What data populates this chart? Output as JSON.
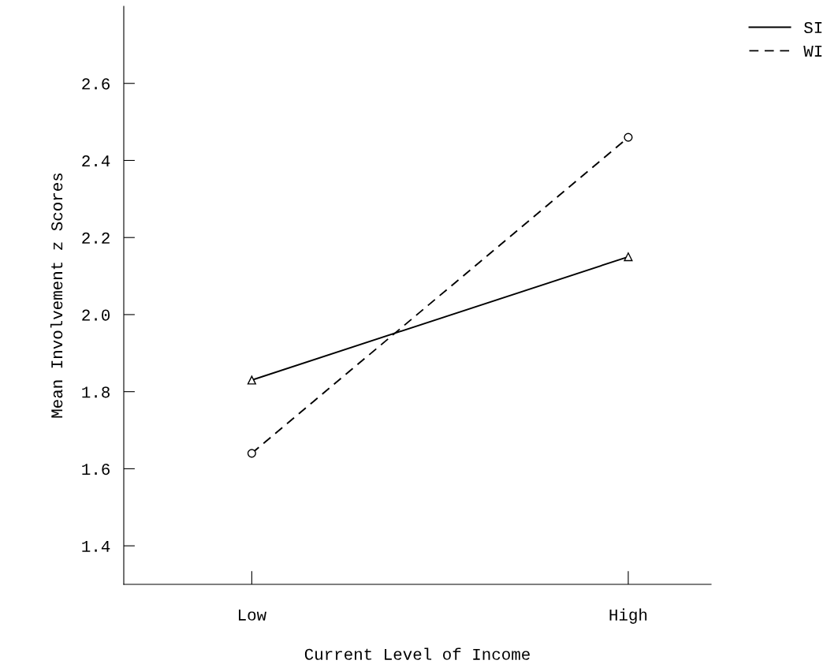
{
  "chart_data": {
    "type": "line",
    "xlabel": "Current Level of Income",
    "ylabel": "Mean Involvement z Scores",
    "categories": [
      "Low",
      "High"
    ],
    "series": [
      {
        "name": "SI",
        "color": "#000000",
        "values": [
          1.83,
          2.15
        ],
        "marker": "triangle",
        "line_style": "solid"
      },
      {
        "name": "WI",
        "color": "#000000",
        "values": [
          1.64,
          2.46
        ],
        "marker": "circle",
        "line_style": "dashed"
      }
    ],
    "ylim": [
      1.3,
      2.8
    ],
    "yticks": [
      1.4,
      1.6,
      1.8,
      {
        "value": 2.0,
        "label": "2.0"
      },
      2.2,
      2.4,
      2.6
    ],
    "grid": false,
    "legend": "top right"
  }
}
